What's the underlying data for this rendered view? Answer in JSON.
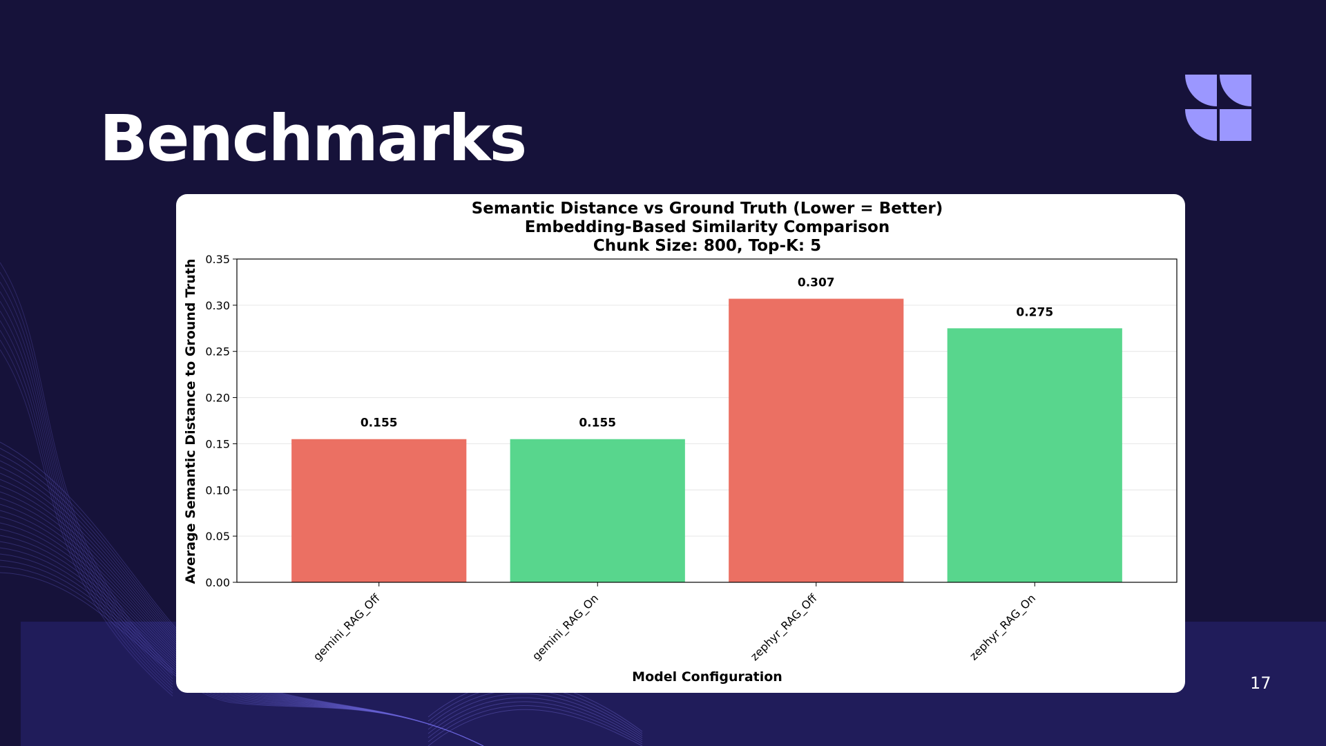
{
  "slide": {
    "title": "Benchmarks",
    "page_number": "17",
    "colors": {
      "background": "#16123a",
      "accent": "#9b97ff",
      "bar_rag_off": "#eb7063",
      "bar_rag_on": "#58d68d"
    },
    "icons": {
      "logo": "quarter-circle-logo-icon"
    }
  },
  "chart_data": {
    "type": "bar",
    "title": "Semantic Distance vs Ground Truth (Lower = Better)",
    "subtitle_lines": [
      "Embedding-Based Similarity Comparison",
      "Chunk Size: 800, Top-K: 5"
    ],
    "xlabel": "Model Configuration",
    "ylabel": "Average Semantic Distance to Ground Truth",
    "categories": [
      "gemini_RAG_Off",
      "gemini_RAG_On",
      "zephyr_RAG_Off",
      "zephyr_RAG_On"
    ],
    "values": [
      0.155,
      0.155,
      0.307,
      0.275
    ],
    "value_labels": [
      "0.155",
      "0.155",
      "0.307",
      "0.275"
    ],
    "bar_colors": [
      "#eb7063",
      "#58d68d",
      "#eb7063",
      "#58d68d"
    ],
    "yticks": [
      "0.00",
      "0.05",
      "0.10",
      "0.15",
      "0.20",
      "0.25",
      "0.30",
      "0.35"
    ],
    "ylim": [
      0,
      0.35
    ],
    "grid": true,
    "legend": false
  }
}
